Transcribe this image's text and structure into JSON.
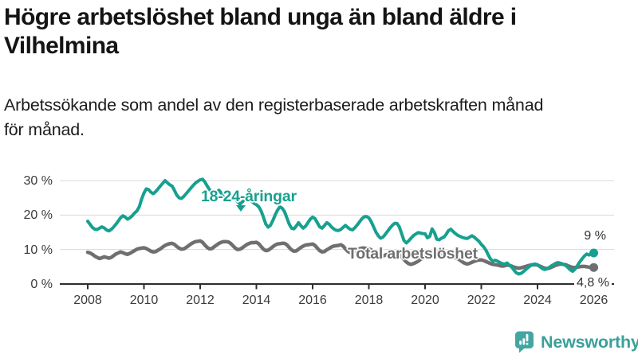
{
  "header": {
    "title_lines": [
      "Högre arbetslöshet bland unga än bland äldre i",
      "Vilhelmina"
    ],
    "subtitle_lines": [
      "Arbetssökande som andel av den registerbaserade arbetskraften månad",
      "för månad."
    ]
  },
  "chart_data": {
    "type": "line",
    "title": "Arbetssökande som andel av den registerbaserade arbetskraften månad för månad",
    "xlabel": "",
    "ylabel": "",
    "x_unit": "monthly",
    "x_start": "2008-01",
    "x_end": "2026-01",
    "ylim": [
      0,
      32
    ],
    "grid": "horizontal",
    "ytick_values": [
      0,
      10,
      20,
      30
    ],
    "ytick_labels": [
      "0 %",
      "10 %",
      "20 %",
      "30 %"
    ],
    "xtick_years": [
      2008,
      2010,
      2012,
      2014,
      2016,
      2018,
      2020,
      2022,
      2024,
      2026
    ],
    "xtick_labels": [
      "2008",
      "2010",
      "2012",
      "2014",
      "2016",
      "2018",
      "2020",
      "2022",
      "2024",
      "2026"
    ],
    "axis_color": "#2d2d2d",
    "grid_color": "#d9d9d9",
    "series": [
      {
        "name": "18-24-åringar",
        "color": "#17a08f",
        "stroke_width": 4,
        "end_label": "9 %",
        "values": [
          18.2,
          17.3,
          16.4,
          15.9,
          15.8,
          16.2,
          16.6,
          16.3,
          15.7,
          15.4,
          15.8,
          16.5,
          17.3,
          18.2,
          19.2,
          19.8,
          19.4,
          18.8,
          19.2,
          19.8,
          20.6,
          21.2,
          22.4,
          24.6,
          26.4,
          27.6,
          27.4,
          26.6,
          26.2,
          26.8,
          27.6,
          28.4,
          29.2,
          30.0,
          29.4,
          28.8,
          28.4,
          27.2,
          25.8,
          25.0,
          24.8,
          25.4,
          26.2,
          27.0,
          27.8,
          28.6,
          29.3,
          29.8,
          30.2,
          30.4,
          29.6,
          28.4,
          27.4,
          26.6,
          26.2,
          26.6,
          27.2,
          26.4,
          25.2,
          24.6,
          25.2,
          26.0,
          25.4,
          24.6,
          23.8,
          23.2,
          23.8,
          24.6,
          25.2,
          24.8,
          24.0,
          23.4,
          23.0,
          22.4,
          21.2,
          19.4,
          17.4,
          16.5,
          17.0,
          18.4,
          20.0,
          21.4,
          22.4,
          22.0,
          21.0,
          19.2,
          17.4,
          16.2,
          16.0,
          16.8,
          17.8,
          16.9,
          16.2,
          16.8,
          17.8,
          18.8,
          19.4,
          19.0,
          17.8,
          16.6,
          16.2,
          16.9,
          17.8,
          17.4,
          16.6,
          16.0,
          15.6,
          15.5,
          15.8,
          16.4,
          17.0,
          16.4,
          15.9,
          15.7,
          16.3,
          17.1,
          18.0,
          18.9,
          19.5,
          19.6,
          19.2,
          18.1,
          16.6,
          15.1,
          14.0,
          13.3,
          13.6,
          14.4,
          15.3,
          16.2,
          17.0,
          17.6,
          17.6,
          16.6,
          14.6,
          12.6,
          11.9,
          12.5,
          13.3,
          14.0,
          14.5,
          14.9,
          14.8,
          14.6,
          14.6,
          13.4,
          13.8,
          16.0,
          14.9,
          13.0,
          12.8,
          13.3,
          13.6,
          14.4,
          15.5,
          15.9,
          15.2,
          14.6,
          14.1,
          13.8,
          13.5,
          13.3,
          13.2,
          13.6,
          14.0,
          13.6,
          13.0,
          12.4,
          11.5,
          10.8,
          9.8,
          8.4,
          7.2,
          6.6,
          6.9,
          6.6,
          6.2,
          5.9,
          5.8,
          6.1,
          5.5,
          4.9,
          4.0,
          3.2,
          2.9,
          3.1,
          3.6,
          4.2,
          4.8,
          5.3,
          5.7,
          5.8,
          5.6,
          5.0,
          4.5,
          4.2,
          4.4,
          4.8,
          5.3,
          5.7,
          6.1,
          6.2,
          6.0,
          5.7,
          5.4,
          4.8,
          4.1,
          3.7,
          4.3,
          5.3,
          6.4,
          7.3,
          8.1,
          8.7,
          8.4,
          8.8,
          9.0
        ]
      },
      {
        "name": "Total arbetslöshet",
        "color": "#706f6f",
        "stroke_width": 4.5,
        "end_label": "4,8 %",
        "values": [
          9.2,
          9.0,
          8.6,
          8.1,
          7.7,
          7.4,
          7.6,
          7.9,
          7.7,
          7.5,
          7.7,
          8.2,
          8.7,
          9.0,
          9.3,
          9.1,
          8.8,
          8.6,
          8.9,
          9.3,
          9.7,
          10.1,
          10.3,
          10.4,
          10.5,
          10.3,
          9.9,
          9.5,
          9.3,
          9.4,
          9.8,
          10.2,
          10.7,
          11.2,
          11.5,
          11.7,
          11.8,
          11.5,
          10.9,
          10.4,
          10.1,
          10.2,
          10.6,
          11.1,
          11.6,
          12.0,
          12.3,
          12.4,
          12.5,
          12.1,
          11.3,
          10.6,
          10.2,
          10.3,
          10.8,
          11.3,
          11.8,
          12.1,
          12.3,
          12.3,
          12.2,
          11.8,
          11.1,
          10.4,
          10.0,
          10.1,
          10.5,
          11.0,
          11.5,
          11.8,
          12.0,
          12.0,
          12.1,
          11.7,
          10.9,
          10.1,
          9.7,
          9.8,
          10.3,
          10.8,
          11.3,
          11.6,
          11.7,
          11.8,
          11.8,
          11.4,
          10.6,
          9.9,
          9.5,
          9.6,
          10.1,
          10.6,
          11.0,
          11.3,
          11.4,
          11.5,
          11.6,
          11.2,
          10.4,
          9.7,
          9.3,
          9.4,
          9.9,
          10.3,
          10.7,
          11.0,
          11.1,
          11.2,
          11.4,
          11.0,
          10.2,
          9.5,
          9.1,
          9.1,
          9.5,
          9.9,
          10.2,
          10.4,
          10.4,
          10.3,
          10.2,
          9.9,
          9.3,
          8.7,
          8.2,
          7.9,
          8.1,
          8.4,
          8.6,
          8.8,
          8.9,
          8.9,
          8.9,
          8.6,
          7.9,
          7.1,
          6.4,
          5.9,
          5.7,
          5.9,
          6.2,
          6.6,
          7.1,
          7.5,
          7.9,
          8.2,
          8.7,
          9.4,
          9.7,
          9.5,
          9.1,
          8.8,
          8.5,
          8.2,
          8.0,
          7.9,
          7.8,
          7.6,
          7.3,
          6.9,
          6.4,
          6.0,
          5.8,
          6.0,
          6.3,
          6.6,
          6.8,
          7.0,
          7.0,
          6.8,
          6.5,
          6.2,
          5.9,
          5.7,
          5.6,
          5.5,
          5.3,
          5.2,
          5.3,
          5.5,
          5.4,
          5.2,
          4.9,
          4.7,
          4.6,
          4.7,
          4.9,
          5.1,
          5.3,
          5.5,
          5.6,
          5.6,
          5.5,
          5.2,
          4.9,
          4.6,
          4.5,
          4.6,
          4.9,
          5.2,
          5.5,
          5.7,
          5.8,
          5.7,
          5.6,
          5.3,
          5.0,
          4.8,
          4.8,
          4.9,
          5.0,
          5.1,
          5.1,
          5.0,
          4.9,
          4.8,
          4.8
        ]
      }
    ]
  },
  "branding": {
    "logo_text": "Newsworthy",
    "logo_color": "#3aa09a",
    "icon_color": "#43a6a1",
    "icon": "speech-bubble-bar-chart"
  }
}
